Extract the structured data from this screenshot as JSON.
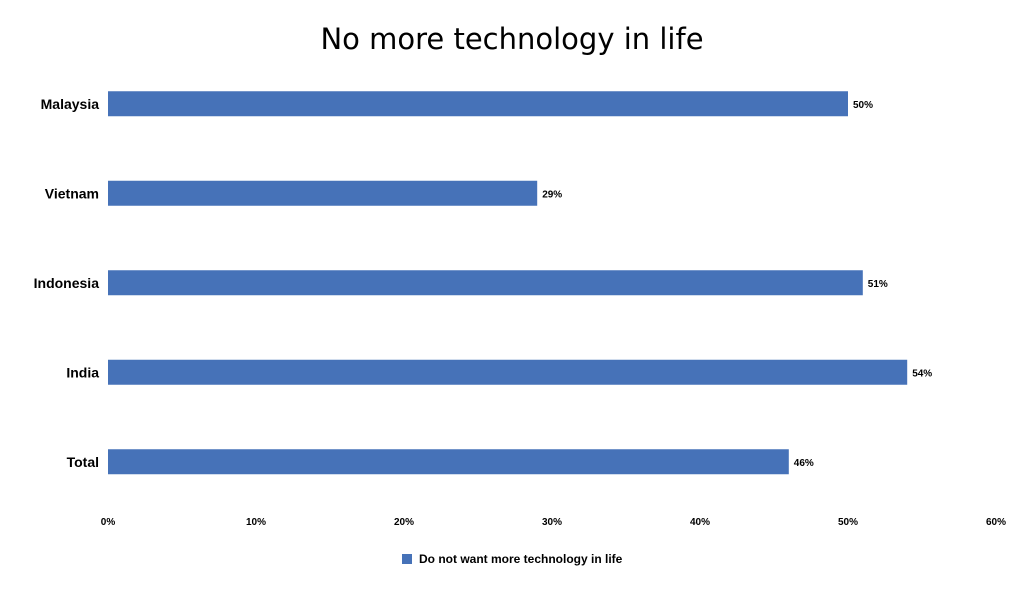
{
  "chart_data": {
    "type": "bar",
    "orientation": "horizontal",
    "title": "No more technology in life",
    "categories": [
      "Malaysia",
      "Vietnam",
      "Indonesia",
      "India",
      "Total"
    ],
    "series": [
      {
        "name": "Do not want more technology in life",
        "values": [
          50,
          29,
          51,
          54,
          46
        ],
        "color": "#4672B8"
      }
    ],
    "value_labels": [
      "50%",
      "29%",
      "51%",
      "54%",
      "46%"
    ],
    "xlim": [
      0,
      60
    ],
    "x_ticks": [
      0,
      10,
      20,
      30,
      40,
      50,
      60
    ],
    "x_tick_labels": [
      "0%",
      "10%",
      "20%",
      "30%",
      "40%",
      "50%",
      "60%"
    ],
    "xlabel": "",
    "ylabel": "",
    "grid": false,
    "legend_position": "bottom"
  }
}
